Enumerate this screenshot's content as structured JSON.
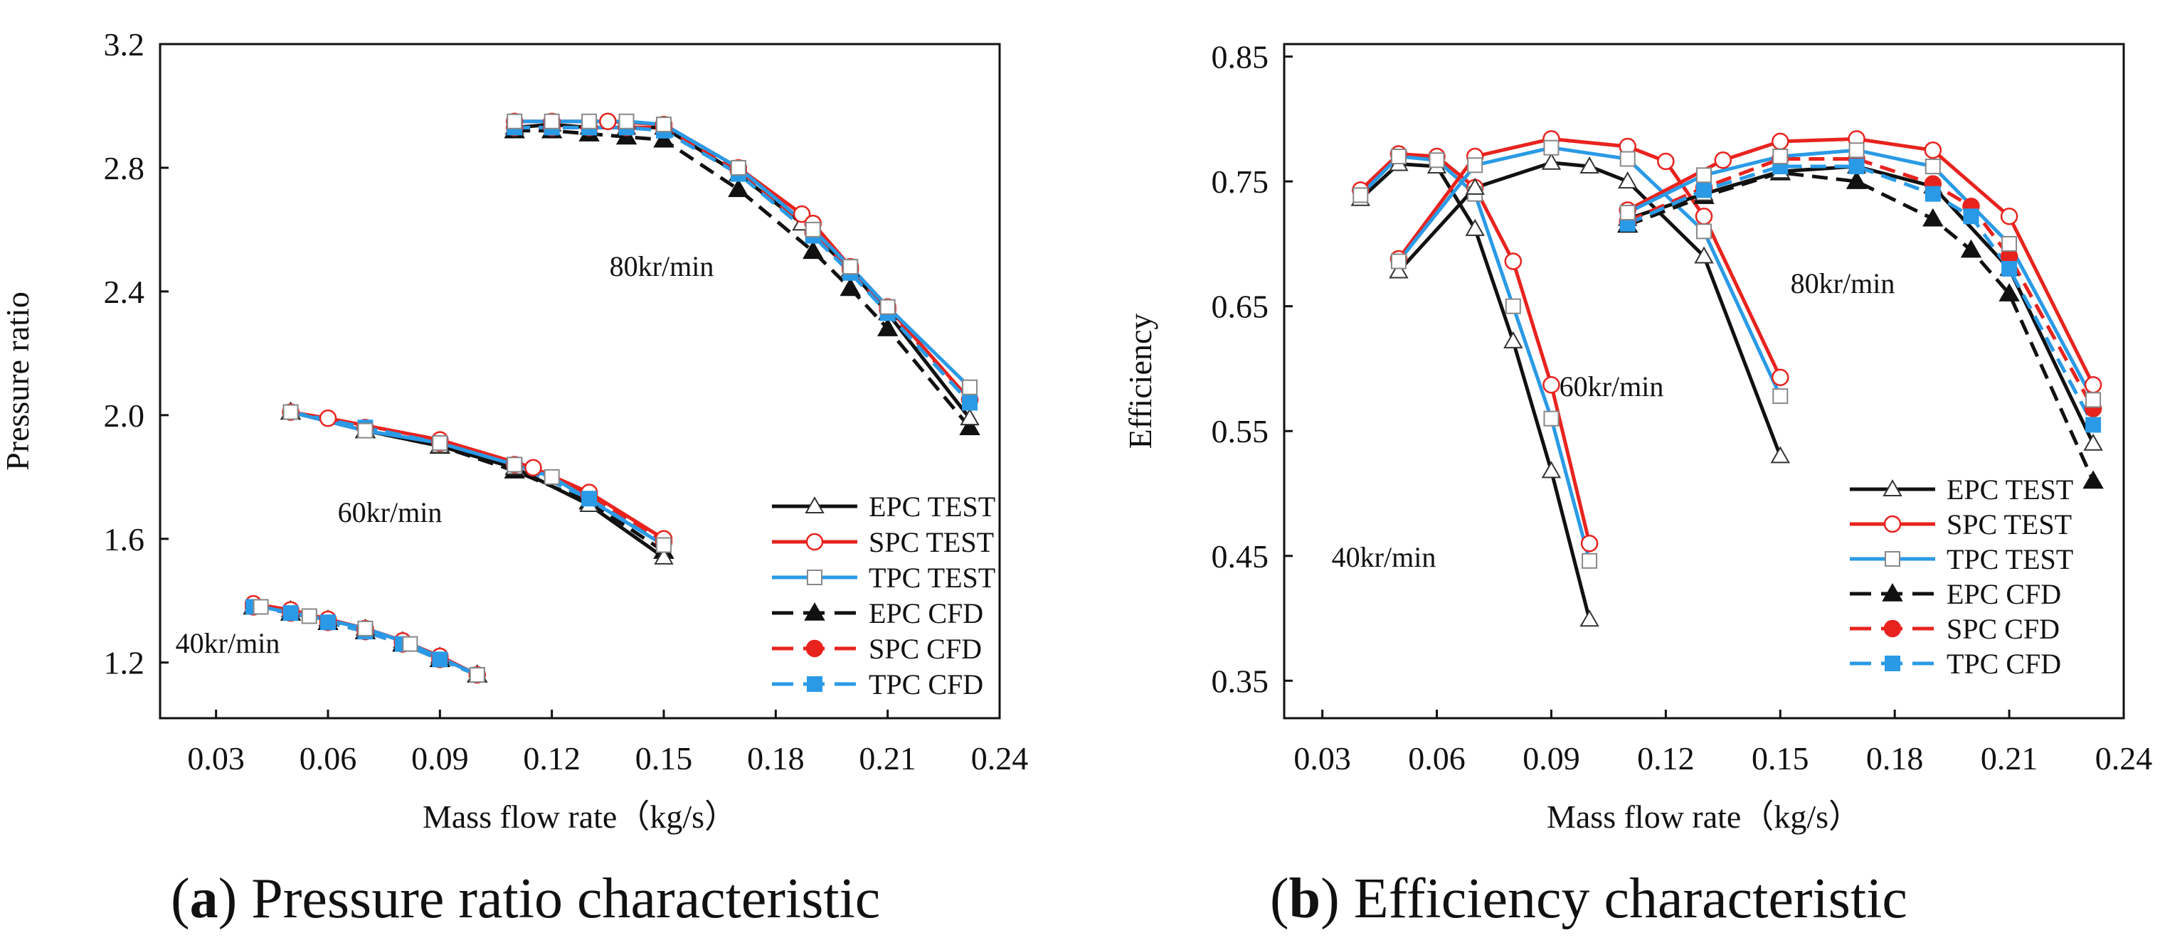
{
  "figure": {
    "captions": [
      {
        "letter": "a",
        "rest": ") Pressure ratio characteristic",
        "open": "("
      },
      {
        "letter": "b",
        "rest": ") Efficiency characteristic",
        "open": "("
      }
    ]
  },
  "legend": {
    "entries": [
      {
        "label": "EPC TEST",
        "color": "#111111",
        "dashed": false,
        "marker": "triangle",
        "filled": false
      },
      {
        "label": "SPC TEST",
        "color": "#e8231e",
        "dashed": false,
        "marker": "circle",
        "filled": false
      },
      {
        "label": "TPC TEST",
        "color": "#2a9ae6",
        "dashed": false,
        "marker": "square",
        "filled": false
      },
      {
        "label": "EPC CFD",
        "color": "#111111",
        "dashed": true,
        "marker": "triangle",
        "filled": true
      },
      {
        "label": "SPC CFD",
        "color": "#e8231e",
        "dashed": true,
        "marker": "circle",
        "filled": true
      },
      {
        "label": "TPC CFD",
        "color": "#2a9ae6",
        "dashed": true,
        "marker": "square",
        "filled": true
      }
    ]
  },
  "chart_data": [
    {
      "type": "line",
      "ylabel": "Pressure ratio",
      "xlabel": "Mass flow rate（kg/s）",
      "xlim": [
        0.015,
        0.24
      ],
      "ylim": [
        1.02,
        3.2
      ],
      "xticks": [
        "0.03",
        "0.06",
        "0.09",
        "0.12",
        "0.15",
        "0.18",
        "0.21",
        "0.24"
      ],
      "yticks": [
        "1.2",
        "1.6",
        "2.0",
        "2.4",
        "2.8",
        "3.2"
      ],
      "annotations": [
        {
          "text": "80kr/min",
          "x": 0.148,
          "y": 2.5
        },
        {
          "text": "60kr/min",
          "x": 0.09,
          "y": 1.73
        },
        {
          "text": "40kr/min",
          "x": 0.037,
          "y": 1.23
        }
      ],
      "speedlines": [
        {
          "speed": "80kr/min",
          "series": [
            {
              "name": "EPC TEST",
              "x": [
                0.11,
                0.12,
                0.13,
                0.14,
                0.15,
                0.17,
                0.187,
                0.2,
                0.21,
                0.232
              ],
              "y": [
                2.93,
                2.94,
                2.93,
                2.93,
                2.93,
                2.78,
                2.62,
                2.47,
                2.33,
                1.99
              ]
            },
            {
              "name": "SPC TEST",
              "x": [
                0.11,
                0.12,
                0.135,
                0.15,
                0.17,
                0.187,
                0.19,
                0.2,
                0.21,
                0.232
              ],
              "y": [
                2.95,
                2.95,
                2.95,
                2.94,
                2.8,
                2.65,
                2.62,
                2.48,
                2.35,
                2.05
              ]
            },
            {
              "name": "TPC TEST",
              "x": [
                0.11,
                0.12,
                0.13,
                0.14,
                0.15,
                0.17,
                0.19,
                0.2,
                0.21,
                0.232
              ],
              "y": [
                2.95,
                2.95,
                2.95,
                2.95,
                2.94,
                2.8,
                2.6,
                2.48,
                2.35,
                2.09
              ]
            },
            {
              "name": "EPC CFD",
              "x": [
                0.11,
                0.12,
                0.13,
                0.14,
                0.15,
                0.17,
                0.19,
                0.2,
                0.21,
                0.232
              ],
              "y": [
                2.92,
                2.92,
                2.91,
                2.9,
                2.89,
                2.73,
                2.53,
                2.41,
                2.28,
                1.96
              ]
            },
            {
              "name": "SPC CFD",
              "x": [
                0.11,
                0.12,
                0.13,
                0.14,
                0.15,
                0.17,
                0.19,
                0.2,
                0.21,
                0.232
              ],
              "y": [
                2.93,
                2.93,
                2.93,
                2.93,
                2.93,
                2.79,
                2.59,
                2.47,
                2.34,
                2.05
              ]
            },
            {
              "name": "TPC CFD",
              "x": [
                0.11,
                0.12,
                0.13,
                0.14,
                0.15,
                0.17,
                0.19,
                0.2,
                0.21,
                0.232
              ],
              "y": [
                2.93,
                2.93,
                2.93,
                2.93,
                2.92,
                2.78,
                2.58,
                2.46,
                2.33,
                2.04
              ]
            }
          ]
        },
        {
          "speed": "60kr/min",
          "series": [
            {
              "name": "EPC TEST",
              "x": [
                0.05,
                0.07,
                0.09,
                0.11,
                0.13,
                0.15
              ],
              "y": [
                2.01,
                1.95,
                1.9,
                1.83,
                1.71,
                1.54
              ]
            },
            {
              "name": "SPC TEST",
              "x": [
                0.05,
                0.06,
                0.09,
                0.115,
                0.13,
                0.15
              ],
              "y": [
                2.01,
                1.99,
                1.92,
                1.83,
                1.75,
                1.6
              ]
            },
            {
              "name": "TPC TEST",
              "x": [
                0.05,
                0.07,
                0.09,
                0.11,
                0.12,
                0.15
              ],
              "y": [
                2.01,
                1.95,
                1.91,
                1.84,
                1.8,
                1.58
              ]
            },
            {
              "name": "EPC CFD",
              "x": [
                0.05,
                0.07,
                0.09,
                0.11,
                0.13,
                0.15
              ],
              "y": [
                2.01,
                1.95,
                1.9,
                1.82,
                1.72,
                1.56
              ]
            },
            {
              "name": "SPC CFD",
              "x": [
                0.05,
                0.07,
                0.09,
                0.11,
                0.13,
                0.15
              ],
              "y": [
                2.01,
                1.96,
                1.91,
                1.84,
                1.74,
                1.59
              ]
            },
            {
              "name": "TPC CFD",
              "x": [
                0.05,
                0.07,
                0.09,
                0.11,
                0.13,
                0.15
              ],
              "y": [
                2.01,
                1.96,
                1.91,
                1.84,
                1.73,
                1.58
              ]
            }
          ]
        },
        {
          "speed": "40kr/min",
          "series": [
            {
              "name": "EPC TEST",
              "x": [
                0.04,
                0.05,
                0.06,
                0.07,
                0.08,
                0.09,
                0.1
              ],
              "y": [
                1.38,
                1.37,
                1.34,
                1.31,
                1.27,
                1.22,
                1.16
              ]
            },
            {
              "name": "SPC TEST",
              "x": [
                0.04,
                0.05,
                0.06,
                0.07,
                0.08,
                0.09,
                0.1
              ],
              "y": [
                1.39,
                1.37,
                1.34,
                1.31,
                1.27,
                1.22,
                1.16
              ]
            },
            {
              "name": "TPC TEST",
              "x": [
                0.042,
                0.055,
                0.07,
                0.082,
                0.1
              ],
              "y": [
                1.38,
                1.35,
                1.31,
                1.26,
                1.16
              ]
            },
            {
              "name": "EPC CFD",
              "x": [
                0.04,
                0.05,
                0.06,
                0.07,
                0.08,
                0.09,
                0.1
              ],
              "y": [
                1.38,
                1.36,
                1.33,
                1.3,
                1.26,
                1.21,
                1.16
              ]
            },
            {
              "name": "SPC CFD",
              "x": [
                0.04,
                0.05,
                0.06,
                0.07,
                0.08,
                0.09,
                0.1
              ],
              "y": [
                1.38,
                1.36,
                1.33,
                1.3,
                1.26,
                1.21,
                1.16
              ]
            },
            {
              "name": "TPC CFD",
              "x": [
                0.04,
                0.05,
                0.06,
                0.07,
                0.08,
                0.09,
                0.1
              ],
              "y": [
                1.38,
                1.36,
                1.33,
                1.3,
                1.26,
                1.21,
                1.16
              ]
            }
          ]
        }
      ]
    },
    {
      "type": "line",
      "ylabel": "Efficiency",
      "xlabel": "Mass flow rate（kg/s）",
      "xlim": [
        0.02,
        0.24
      ],
      "ylim": [
        0.32,
        0.86
      ],
      "xticks": [
        "0.03",
        "0.06",
        "0.09",
        "0.12",
        "0.15",
        "0.18",
        "0.21",
        "0.24"
      ],
      "yticks": [
        "0.35",
        "0.45",
        "0.55",
        "0.65",
        "0.75",
        "0.85"
      ],
      "annotations": [
        {
          "text": "80kr/min",
          "x": 0.192,
          "y": 0.66
        },
        {
          "text": "60kr/min",
          "x": 0.135,
          "y": 0.53
        },
        {
          "text": "40kr/min",
          "x": 0.081,
          "y": 0.399
        }
      ],
      "speedlines": [
        {
          "speed": "40kr/min",
          "series": [
            {
              "name": "EPC TEST",
              "x": [
                0.04,
                0.05,
                0.06,
                0.07,
                0.08,
                0.09,
                0.1
              ],
              "y": [
                0.736,
                0.764,
                0.762,
                0.712,
                0.622,
                0.518,
                0.399
              ]
            },
            {
              "name": "SPC TEST",
              "x": [
                0.04,
                0.05,
                0.06,
                0.07,
                0.08,
                0.09,
                0.1
              ],
              "y": [
                0.743,
                0.772,
                0.77,
                0.745,
                0.686,
                0.587,
                0.46
              ]
            },
            {
              "name": "TPC TEST",
              "x": [
                0.04,
                0.05,
                0.06,
                0.07,
                0.08,
                0.09,
                0.1
              ],
              "y": [
                0.739,
                0.77,
                0.767,
                0.74,
                0.65,
                0.56,
                0.446
              ]
            }
          ]
        },
        {
          "speed": "60kr/min",
          "series": [
            {
              "name": "EPC TEST",
              "x": [
                0.05,
                0.07,
                0.09,
                0.1,
                0.11,
                0.13,
                0.15
              ],
              "y": [
                0.678,
                0.745,
                0.765,
                0.762,
                0.75,
                0.69,
                0.53
              ]
            },
            {
              "name": "SPC TEST",
              "x": [
                0.05,
                0.07,
                0.09,
                0.11,
                0.12,
                0.13,
                0.15
              ],
              "y": [
                0.688,
                0.77,
                0.784,
                0.778,
                0.766,
                0.722,
                0.593
              ]
            },
            {
              "name": "TPC TEST",
              "x": [
                0.05,
                0.07,
                0.09,
                0.11,
                0.13,
                0.15
              ],
              "y": [
                0.686,
                0.763,
                0.777,
                0.768,
                0.71,
                0.578
              ]
            }
          ]
        },
        {
          "speed": "80kr/min",
          "series": [
            {
              "name": "EPC TEST",
              "x": [
                0.11,
                0.13,
                0.15,
                0.17,
                0.19,
                0.21,
                0.232
              ],
              "y": [
                0.72,
                0.74,
                0.758,
                0.762,
                0.746,
                0.68,
                0.54
              ]
            },
            {
              "name": "SPC TEST",
              "x": [
                0.11,
                0.135,
                0.15,
                0.17,
                0.19,
                0.21,
                0.232
              ],
              "y": [
                0.727,
                0.767,
                0.782,
                0.784,
                0.775,
                0.722,
                0.587
              ]
            },
            {
              "name": "TPC TEST",
              "x": [
                0.11,
                0.13,
                0.15,
                0.17,
                0.19,
                0.21,
                0.232
              ],
              "y": [
                0.725,
                0.755,
                0.77,
                0.775,
                0.762,
                0.7,
                0.575
              ]
            },
            {
              "name": "EPC CFD",
              "x": [
                0.11,
                0.13,
                0.15,
                0.17,
                0.19,
                0.2,
                0.21,
                0.232
              ],
              "y": [
                0.715,
                0.738,
                0.757,
                0.75,
                0.72,
                0.695,
                0.66,
                0.51
              ]
            },
            {
              "name": "SPC CFD",
              "x": [
                0.11,
                0.13,
                0.15,
                0.17,
                0.19,
                0.2,
                0.21,
                0.232
              ],
              "y": [
                0.718,
                0.745,
                0.768,
                0.768,
                0.748,
                0.73,
                0.69,
                0.568
              ]
            },
            {
              "name": "TPC CFD",
              "x": [
                0.11,
                0.13,
                0.15,
                0.17,
                0.19,
                0.2,
                0.21,
                0.232
              ],
              "y": [
                0.716,
                0.743,
                0.762,
                0.762,
                0.74,
                0.722,
                0.68,
                0.555
              ]
            }
          ]
        }
      ]
    }
  ]
}
